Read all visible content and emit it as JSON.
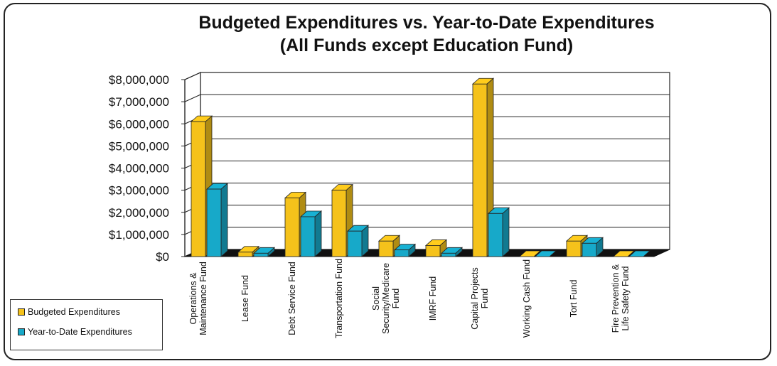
{
  "chart_data": {
    "type": "bar",
    "title": "Budgeted Expenditures vs. Year-to-Date Expenditures",
    "subtitle": "(All Funds except Education Fund)",
    "categories": [
      [
        "Operations &",
        "Maintenance Fund"
      ],
      [
        "Lease Fund"
      ],
      [
        "Debt Service Fund"
      ],
      [
        "Transportation Fund"
      ],
      [
        "Social",
        "Security/Medicare",
        "Fund"
      ],
      [
        "IMRF Fund"
      ],
      [
        "Capital Projects",
        "Fund"
      ],
      [
        "Working Cash Fund"
      ],
      [
        "Tort Fund"
      ],
      [
        "Fire Prevention &",
        "Life Safety Fund"
      ]
    ],
    "series": [
      {
        "name": "Budgeted Expenditures",
        "color": "#f5c21b",
        "values": [
          6100000,
          200000,
          2650000,
          3000000,
          700000,
          500000,
          7800000,
          0,
          700000,
          0
        ]
      },
      {
        "name": "Year-to-Date Expenditures",
        "color": "#17a9c9",
        "values": [
          3050000,
          150000,
          1800000,
          1150000,
          300000,
          150000,
          1950000,
          0,
          600000,
          0
        ]
      }
    ],
    "ylim": [
      0,
      8000000
    ],
    "yticks": [
      "$0",
      "$1,000,000",
      "$2,000,000",
      "$3,000,000",
      "$4,000,000",
      "$5,000,000",
      "$6,000,000",
      "$7,000,000",
      "$8,000,000"
    ],
    "grid": true,
    "legend_position": "bottom-left"
  }
}
